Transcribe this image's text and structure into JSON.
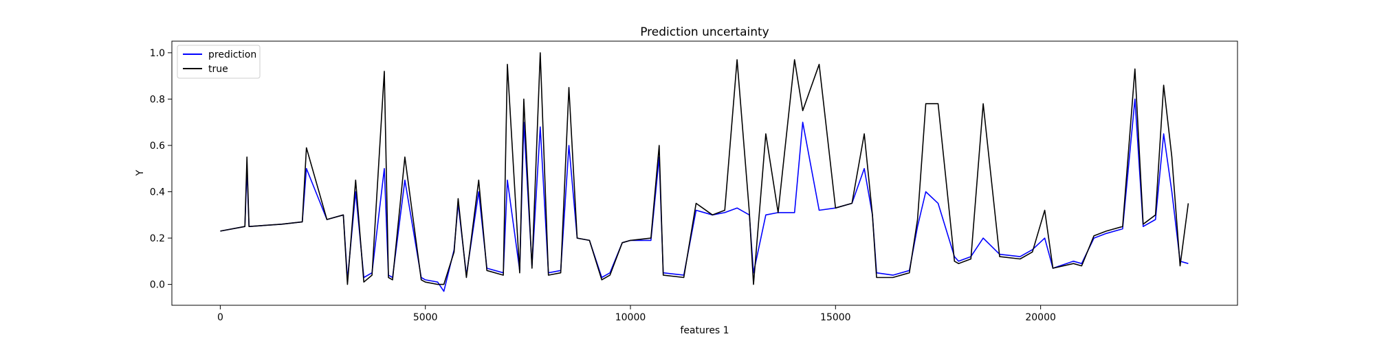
{
  "chart_data": {
    "type": "line",
    "title": "Prediction uncertainty",
    "xlabel": "features 1",
    "ylabel": "Y",
    "xlim": [
      -1180,
      24800
    ],
    "ylim": [
      -0.09,
      1.05
    ],
    "xticks": [
      0,
      5000,
      10000,
      15000,
      20000
    ],
    "xtick_labels": [
      "0",
      "5000",
      "10000",
      "15000",
      "20000"
    ],
    "yticks": [
      0.0,
      0.2,
      0.4,
      0.6,
      0.8,
      1.0
    ],
    "ytick_labels": [
      "0.0",
      "0.2",
      "0.4",
      "0.6",
      "0.8",
      "1.0"
    ],
    "grid": false,
    "legend_position": "upper-left",
    "series": [
      {
        "name": "prediction",
        "color": "#0000ff",
        "x": [
          0,
          600,
          650,
          700,
          1500,
          2000,
          2100,
          2600,
          3000,
          3100,
          3300,
          3500,
          3700,
          4000,
          4100,
          4200,
          4500,
          4900,
          5000,
          5300,
          5450,
          5700,
          5800,
          6000,
          6300,
          6500,
          6900,
          7000,
          7300,
          7400,
          7600,
          7800,
          8000,
          8300,
          8500,
          8700,
          9000,
          9300,
          9500,
          9800,
          10000,
          10500,
          10700,
          10800,
          11300,
          11600,
          12000,
          12300,
          12600,
          12900,
          13000,
          13300,
          13600,
          14000,
          14200,
          14600,
          15000,
          15400,
          15700,
          15900,
          16000,
          16400,
          16800,
          17000,
          17200,
          17500,
          17900,
          18000,
          18300,
          18600,
          19000,
          19500,
          19800,
          20100,
          20300,
          20800,
          21000,
          21300,
          21600,
          22000,
          22300,
          22500,
          22800,
          23000,
          23200,
          23400,
          23600
        ],
        "y": [
          0.23,
          0.25,
          0.5,
          0.25,
          0.26,
          0.27,
          0.5,
          0.28,
          0.3,
          0.02,
          0.4,
          0.03,
          0.05,
          0.5,
          0.04,
          0.03,
          0.45,
          0.03,
          0.02,
          0.01,
          -0.03,
          0.15,
          0.35,
          0.04,
          0.4,
          0.07,
          0.05,
          0.45,
          0.06,
          0.7,
          0.08,
          0.68,
          0.05,
          0.06,
          0.6,
          0.2,
          0.19,
          0.03,
          0.05,
          0.18,
          0.19,
          0.19,
          0.55,
          0.05,
          0.04,
          0.32,
          0.3,
          0.31,
          0.33,
          0.3,
          0.05,
          0.3,
          0.31,
          0.31,
          0.7,
          0.32,
          0.33,
          0.35,
          0.5,
          0.3,
          0.05,
          0.04,
          0.06,
          0.25,
          0.4,
          0.35,
          0.12,
          0.1,
          0.12,
          0.2,
          0.13,
          0.12,
          0.15,
          0.2,
          0.07,
          0.1,
          0.09,
          0.2,
          0.22,
          0.24,
          0.8,
          0.25,
          0.28,
          0.65,
          0.4,
          0.1,
          0.09
        ]
      },
      {
        "name": "true",
        "color": "#000000",
        "x": [
          0,
          600,
          650,
          700,
          1500,
          2000,
          2100,
          2600,
          3000,
          3100,
          3300,
          3500,
          3700,
          4000,
          4100,
          4200,
          4500,
          4900,
          5000,
          5300,
          5450,
          5700,
          5800,
          6000,
          6300,
          6500,
          6900,
          7000,
          7300,
          7400,
          7600,
          7800,
          8000,
          8300,
          8500,
          8700,
          9000,
          9300,
          9500,
          9800,
          10000,
          10500,
          10700,
          10800,
          11300,
          11600,
          12000,
          12300,
          12600,
          12900,
          13000,
          13300,
          13600,
          14000,
          14200,
          14600,
          15000,
          15400,
          15700,
          15900,
          16000,
          16400,
          16800,
          17000,
          17200,
          17500,
          17900,
          18000,
          18300,
          18600,
          19000,
          19500,
          19800,
          20100,
          20300,
          20800,
          21000,
          21300,
          21600,
          22000,
          22300,
          22500,
          22800,
          23000,
          23200,
          23400,
          23600
        ],
        "y": [
          0.23,
          0.25,
          0.55,
          0.25,
          0.26,
          0.27,
          0.59,
          0.28,
          0.3,
          0.0,
          0.45,
          0.01,
          0.04,
          0.92,
          0.03,
          0.02,
          0.55,
          0.02,
          0.01,
          0.0,
          0.0,
          0.14,
          0.37,
          0.03,
          0.45,
          0.06,
          0.04,
          0.95,
          0.05,
          0.8,
          0.07,
          1.0,
          0.04,
          0.05,
          0.85,
          0.2,
          0.19,
          0.02,
          0.04,
          0.18,
          0.19,
          0.2,
          0.6,
          0.04,
          0.03,
          0.35,
          0.3,
          0.32,
          0.97,
          0.31,
          0.0,
          0.65,
          0.31,
          0.97,
          0.75,
          0.95,
          0.33,
          0.35,
          0.65,
          0.3,
          0.03,
          0.03,
          0.05,
          0.28,
          0.78,
          0.78,
          0.1,
          0.09,
          0.11,
          0.78,
          0.12,
          0.11,
          0.14,
          0.32,
          0.07,
          0.09,
          0.08,
          0.21,
          0.23,
          0.25,
          0.93,
          0.26,
          0.3,
          0.86,
          0.55,
          0.08,
          0.35
        ]
      }
    ]
  }
}
